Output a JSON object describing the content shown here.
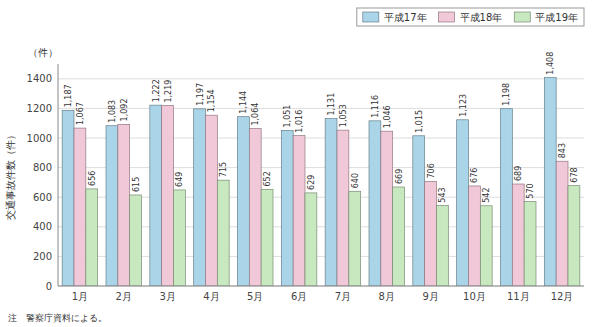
{
  "chart_data": {
    "type": "bar",
    "y_label": "交通事故件数（件）",
    "annotations": [
      {
        "text": "（件）"
      },
      {
        "text": "注　警察庁資料による。"
      }
    ],
    "categories": [
      "1月",
      "2月",
      "3月",
      "4月",
      "5月",
      "6月",
      "7月",
      "8月",
      "9月",
      "10月",
      "11月",
      "12月"
    ],
    "series": [
      {
        "name": "平成17年",
        "color": "#aad4e8",
        "values": [
          1187,
          1083,
          1222,
          1197,
          1144,
          1051,
          1131,
          1116,
          1015,
          1123,
          1198,
          1408
        ],
        "value_labels": [
          "1,187",
          "1,083",
          "1,222",
          "1,197",
          "1,144",
          "1,051",
          "1,131",
          "1,116",
          "1,015",
          "1,123",
          "1,198",
          "1,408"
        ]
      },
      {
        "name": "平成18年",
        "color": "#f0c8d8",
        "values": [
          1067,
          1092,
          1219,
          1154,
          1064,
          1016,
          1053,
          1046,
          706,
          676,
          689,
          843
        ],
        "value_labels": [
          "1,067",
          "1,092",
          "1,219",
          "1,154",
          "1,064",
          "1,016",
          "1,053",
          "1,046",
          "706",
          "676",
          "689",
          "843"
        ]
      },
      {
        "name": "平成19年",
        "color": "#c8e8c0",
        "values": [
          656,
          615,
          649,
          715,
          652,
          629,
          640,
          669,
          543,
          542,
          570,
          678
        ],
        "value_labels": [
          "656",
          "615",
          "649",
          "715",
          "652",
          "629",
          "640",
          "669",
          "543",
          "542",
          "570",
          "678"
        ]
      }
    ],
    "ylim": [
      0,
      1500
    ],
    "yticks": [
      0,
      200,
      400,
      600,
      800,
      1000,
      1200,
      1400
    ],
    "grid": true,
    "legend": "upper right",
    "data_labels": true
  }
}
